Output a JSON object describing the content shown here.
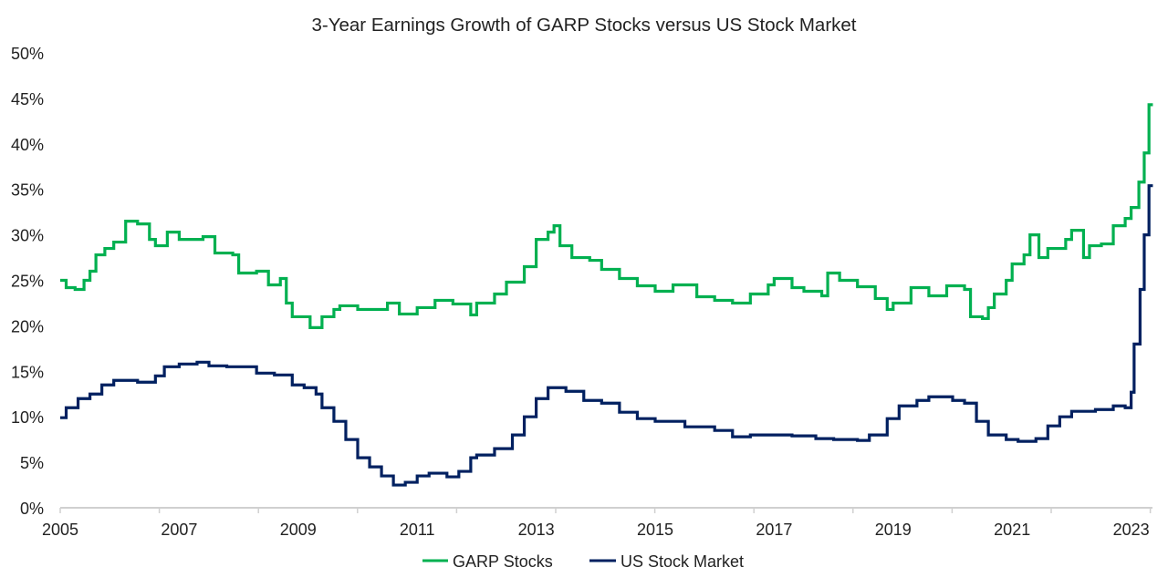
{
  "chart_data": {
    "type": "line",
    "title": "3-Year Earnings Growth of GARP Stocks versus US Stock Market",
    "xlabel": "",
    "ylabel": "",
    "xlim": [
      2005,
      2023.35
    ],
    "ylim": [
      0,
      50
    ],
    "x_ticks": [
      "2005",
      "2007",
      "2009",
      "2011",
      "2013",
      "2015",
      "2017",
      "2019",
      "2021",
      "2023"
    ],
    "y_ticks": [
      "0%",
      "5%",
      "10%",
      "15%",
      "20%",
      "25%",
      "30%",
      "35%",
      "40%",
      "45%",
      "50%"
    ],
    "grid": false,
    "legend": "bottom",
    "line_style": "step",
    "series": [
      {
        "name": "GARP Stocks",
        "color": "#00b050",
        "x": [
          2005.0,
          2005.1,
          2005.25,
          2005.4,
          2005.5,
          2005.6,
          2005.75,
          2005.9,
          2006.1,
          2006.3,
          2006.5,
          2006.6,
          2006.8,
          2007.0,
          2007.4,
          2007.6,
          2007.9,
          2008.0,
          2008.3,
          2008.5,
          2008.7,
          2008.8,
          2008.9,
          2009.1,
          2009.2,
          2009.4,
          2009.6,
          2009.7,
          2010.0,
          2010.5,
          2010.7,
          2011.0,
          2011.3,
          2011.6,
          2011.9,
          2012.0,
          2012.3,
          2012.5,
          2012.8,
          2013.0,
          2013.2,
          2013.3,
          2013.4,
          2013.6,
          2013.9,
          2014.1,
          2014.4,
          2014.7,
          2015.0,
          2015.3,
          2015.7,
          2016.0,
          2016.3,
          2016.6,
          2016.9,
          2017.0,
          2017.3,
          2017.5,
          2017.8,
          2017.9,
          2018.1,
          2018.4,
          2018.7,
          2018.9,
          2019.0,
          2019.3,
          2019.6,
          2019.9,
          2020.2,
          2020.3,
          2020.5,
          2020.6,
          2020.7,
          2020.9,
          2021.0,
          2021.2,
          2021.3,
          2021.45,
          2021.6,
          2021.9,
          2022.0,
          2022.2,
          2022.3,
          2022.5,
          2022.7,
          2022.9,
          2023.0,
          2023.13,
          2023.22,
          2023.3
        ],
        "values": [
          25.0,
          24.2,
          24.0,
          25.0,
          26.0,
          27.8,
          28.5,
          29.2,
          31.5,
          31.2,
          29.5,
          28.8,
          30.3,
          29.5,
          29.8,
          28.0,
          27.8,
          25.8,
          26.0,
          24.5,
          25.2,
          22.5,
          21.0,
          21.0,
          19.8,
          21.0,
          21.8,
          22.2,
          21.8,
          22.5,
          21.3,
          22.0,
          22.8,
          22.4,
          21.2,
          22.5,
          23.5,
          24.8,
          26.5,
          29.5,
          30.3,
          31.0,
          28.8,
          27.5,
          27.2,
          26.2,
          25.2,
          24.4,
          23.8,
          24.5,
          23.2,
          22.8,
          22.5,
          23.5,
          24.5,
          25.2,
          24.2,
          23.8,
          23.3,
          25.8,
          25.0,
          24.3,
          23.0,
          21.8,
          22.5,
          24.2,
          23.3,
          24.4,
          24.0,
          21.0,
          20.8,
          22.0,
          23.5,
          25.0,
          26.8,
          27.8,
          30.0,
          27.5,
          28.5,
          29.5,
          30.5,
          27.5,
          28.8,
          29.0,
          31.0,
          31.8,
          33.0,
          35.8,
          39.0,
          44.3
        ]
      },
      {
        "name": "US Stock Market",
        "color": "#002060",
        "x": [
          2005.0,
          2005.1,
          2005.3,
          2005.5,
          2005.7,
          2005.9,
          2006.3,
          2006.6,
          2006.75,
          2007.0,
          2007.3,
          2007.5,
          2007.8,
          2008.0,
          2008.3,
          2008.6,
          2008.9,
          2009.1,
          2009.3,
          2009.4,
          2009.6,
          2009.8,
          2010.0,
          2010.2,
          2010.4,
          2010.6,
          2010.8,
          2011.0,
          2011.2,
          2011.5,
          2011.7,
          2011.9,
          2012.0,
          2012.3,
          2012.6,
          2012.8,
          2013.0,
          2013.2,
          2013.5,
          2013.8,
          2014.1,
          2014.4,
          2014.7,
          2015.0,
          2015.5,
          2016.0,
          2016.3,
          2016.6,
          2016.9,
          2017.3,
          2017.7,
          2018.0,
          2018.4,
          2018.6,
          2018.9,
          2019.1,
          2019.4,
          2019.6,
          2020.0,
          2020.2,
          2020.4,
          2020.6,
          2020.9,
          2021.1,
          2021.4,
          2021.6,
          2021.8,
          2022.0,
          2022.4,
          2022.7,
          2022.9,
          2023.0,
          2023.05,
          2023.15,
          2023.22,
          2023.3
        ],
        "values": [
          9.9,
          11.0,
          12.0,
          12.5,
          13.5,
          14.0,
          13.8,
          14.5,
          15.5,
          15.8,
          16.0,
          15.6,
          15.5,
          15.5,
          14.8,
          14.6,
          13.5,
          13.2,
          12.5,
          11.0,
          9.5,
          7.5,
          5.5,
          4.5,
          3.5,
          2.5,
          2.8,
          3.5,
          3.8,
          3.4,
          4.0,
          5.5,
          5.8,
          6.5,
          8.0,
          10.0,
          12.0,
          13.2,
          12.8,
          11.8,
          11.5,
          10.5,
          9.8,
          9.5,
          8.9,
          8.5,
          7.8,
          8.0,
          8.0,
          7.9,
          7.6,
          7.5,
          7.4,
          8.0,
          9.8,
          11.2,
          11.8,
          12.2,
          11.8,
          11.5,
          9.5,
          8.0,
          7.5,
          7.3,
          7.6,
          9.0,
          10.0,
          10.6,
          10.8,
          11.2,
          11.0,
          12.7,
          18.0,
          24.0,
          30.0,
          35.4
        ]
      }
    ]
  }
}
